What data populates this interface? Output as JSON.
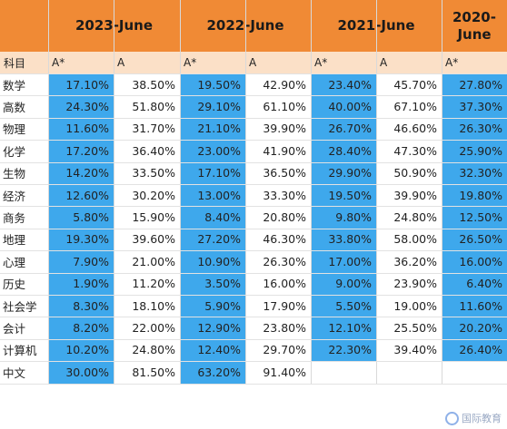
{
  "header": {
    "years": [
      "2023-June",
      "2022-June",
      "2021-June",
      "2020-June"
    ],
    "subject_label": "科目",
    "grade_labels": [
      "A*",
      "A",
      "A*",
      "A",
      "A*",
      "A",
      "A*"
    ]
  },
  "rows": [
    {
      "subject": "数学",
      "values": [
        "17.10%",
        "38.50%",
        "19.50%",
        "42.90%",
        "23.40%",
        "45.70%",
        "27.80%"
      ]
    },
    {
      "subject": "高数",
      "values": [
        "24.30%",
        "51.80%",
        "29.10%",
        "61.10%",
        "40.00%",
        "67.10%",
        "37.30%"
      ]
    },
    {
      "subject": "物理",
      "values": [
        "11.60%",
        "31.70%",
        "21.10%",
        "39.90%",
        "26.70%",
        "46.60%",
        "26.30%"
      ]
    },
    {
      "subject": "化学",
      "values": [
        "17.20%",
        "36.40%",
        "23.00%",
        "41.90%",
        "28.40%",
        "47.30%",
        "25.90%"
      ]
    },
    {
      "subject": "生物",
      "values": [
        "14.20%",
        "33.50%",
        "17.10%",
        "36.50%",
        "29.90%",
        "50.90%",
        "32.30%"
      ]
    },
    {
      "subject": "经济",
      "values": [
        "12.60%",
        "30.20%",
        "13.00%",
        "33.30%",
        "19.50%",
        "39.90%",
        "19.80%"
      ]
    },
    {
      "subject": "商务",
      "values": [
        "5.80%",
        "15.90%",
        "8.40%",
        "20.80%",
        "9.80%",
        "24.80%",
        "12.50%"
      ]
    },
    {
      "subject": "地理",
      "values": [
        "19.30%",
        "39.60%",
        "27.20%",
        "46.30%",
        "33.80%",
        "58.00%",
        "26.50%"
      ]
    },
    {
      "subject": "心理",
      "values": [
        "7.90%",
        "21.00%",
        "10.90%",
        "26.30%",
        "17.00%",
        "36.20%",
        "16.00%"
      ]
    },
    {
      "subject": "历史",
      "values": [
        "1.90%",
        "11.20%",
        "3.50%",
        "16.00%",
        "9.00%",
        "23.90%",
        "6.40%"
      ]
    },
    {
      "subject": "社会学",
      "values": [
        "8.30%",
        "18.10%",
        "5.90%",
        "17.90%",
        "5.50%",
        "19.00%",
        "11.60%"
      ]
    },
    {
      "subject": "会计",
      "values": [
        "8.20%",
        "22.00%",
        "12.90%",
        "23.80%",
        "12.10%",
        "25.50%",
        "20.20%"
      ]
    },
    {
      "subject": "计算机",
      "values": [
        "10.20%",
        "24.80%",
        "12.40%",
        "29.70%",
        "22.30%",
        "39.40%",
        "26.40%"
      ]
    },
    {
      "subject": "中文",
      "values": [
        "30.00%",
        "81.50%",
        "63.20%",
        "91.40%",
        "",
        "",
        ""
      ]
    }
  ],
  "watermark": {
    "text": "国际教育"
  },
  "colors": {
    "header_orange": "#f08a35",
    "subheader_peach": "#fbe0c7",
    "astar_blue": "#3ea8ec"
  }
}
